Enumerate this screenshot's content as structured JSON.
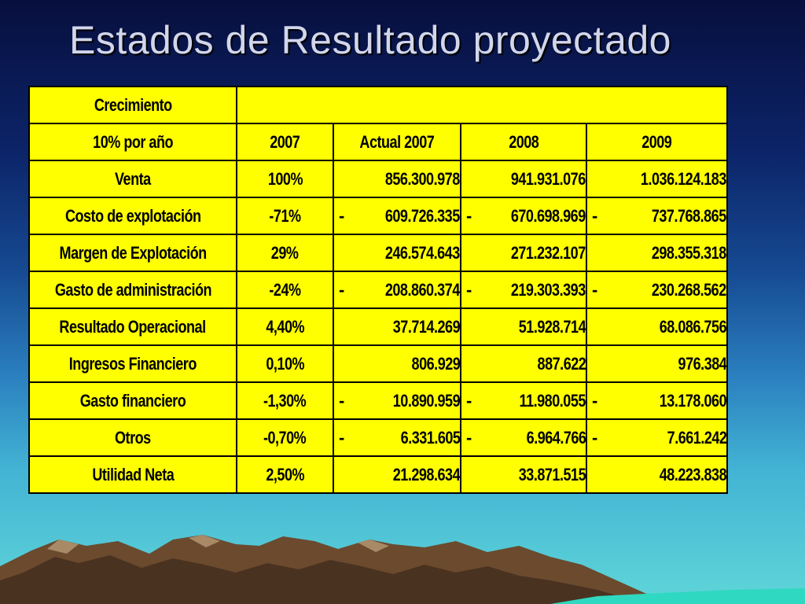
{
  "slide": {
    "title": "Estados de Resultado proyectado"
  },
  "table": {
    "top_left_label": "Crecimiento",
    "growth_label": "10% por año",
    "years": [
      "2007",
      "Actual 2007",
      "2008",
      "2009"
    ],
    "rows": [
      {
        "label": "Venta",
        "pct": "100%",
        "v1": {
          "sign": "",
          "value": "856.300.978"
        },
        "v2": {
          "sign": "",
          "value": "941.931.076"
        },
        "v3": {
          "sign": "",
          "value": "1.036.124.183"
        }
      },
      {
        "label": "Costo de explotación",
        "pct": "-71%",
        "v1": {
          "sign": "-",
          "value": "609.726.335"
        },
        "v2": {
          "sign": "-",
          "value": "670.698.969"
        },
        "v3": {
          "sign": "-",
          "value": "737.768.865"
        }
      },
      {
        "label": "Margen de Explotación",
        "pct": "29%",
        "v1": {
          "sign": "",
          "value": "246.574.643"
        },
        "v2": {
          "sign": "",
          "value": "271.232.107"
        },
        "v3": {
          "sign": "",
          "value": "298.355.318"
        }
      },
      {
        "label": "Gasto de administración",
        "pct": "-24%",
        "v1": {
          "sign": "-",
          "value": "208.860.374"
        },
        "v2": {
          "sign": "-",
          "value": "219.303.393"
        },
        "v3": {
          "sign": "-",
          "value": "230.268.562"
        }
      },
      {
        "label": "Resultado Operacional",
        "pct": "4,40%",
        "v1": {
          "sign": "",
          "value": "37.714.269"
        },
        "v2": {
          "sign": "",
          "value": "51.928.714"
        },
        "v3": {
          "sign": "",
          "value": "68.086.756"
        }
      },
      {
        "label": "Ingresos Financiero",
        "pct": "0,10%",
        "v1": {
          "sign": "",
          "value": "806.929"
        },
        "v2": {
          "sign": "",
          "value": "887.622"
        },
        "v3": {
          "sign": "",
          "value": "976.384"
        }
      },
      {
        "label": "Gasto financiero",
        "pct": "-1,30%",
        "v1": {
          "sign": "-",
          "value": "10.890.959"
        },
        "v2": {
          "sign": "-",
          "value": "11.980.055"
        },
        "v3": {
          "sign": "-",
          "value": "13.178.060"
        }
      },
      {
        "label": "Otros",
        "pct": "-0,70%",
        "v1": {
          "sign": "-",
          "value": "6.331.605"
        },
        "v2": {
          "sign": "-",
          "value": "6.964.766"
        },
        "v3": {
          "sign": "-",
          "value": "7.661.242"
        }
      },
      {
        "label": "Utilidad Neta",
        "pct": "2,50%",
        "v1": {
          "sign": "",
          "value": "21.298.634"
        },
        "v2": {
          "sign": "",
          "value": "33.871.515"
        },
        "v3": {
          "sign": "",
          "value": "48.223.838"
        }
      }
    ]
  },
  "colors": {
    "table_fill": "#ffff00",
    "title_text": "#d2d6ec"
  }
}
